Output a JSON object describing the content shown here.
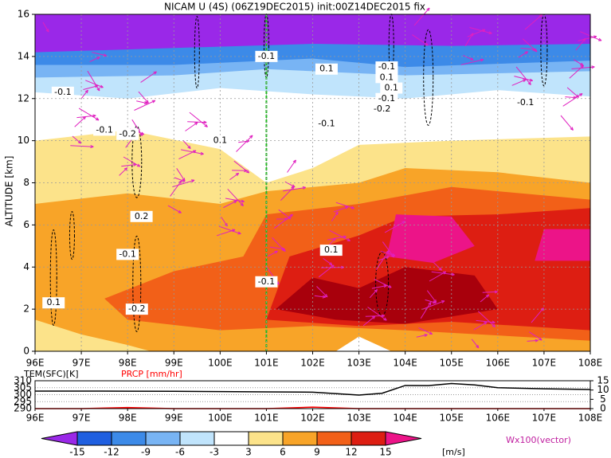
{
  "chart_data": [
    {
      "type": "contour",
      "title": "NICAM U (4S) (06Z19DEC2015) init:00Z14DEC2015 fix",
      "y_label": "ALTITUDE [km]",
      "xlim": [
        96,
        108
      ],
      "xticks": [
        {
          "value": 96,
          "label": "96E"
        },
        {
          "value": 97,
          "label": "97E"
        },
        {
          "value": 98,
          "label": "98E"
        },
        {
          "value": 99,
          "label": "99E"
        },
        {
          "value": 100,
          "label": "100E"
        },
        {
          "value": 101,
          "label": "101E"
        },
        {
          "value": 102,
          "label": "102E"
        },
        {
          "value": 103,
          "label": "103E"
        },
        {
          "value": 104,
          "label": "104E"
        },
        {
          "value": 105,
          "label": "105E"
        },
        {
          "value": 106,
          "label": "106E"
        },
        {
          "value": 107,
          "label": "107E"
        },
        {
          "value": 108,
          "label": "108E"
        }
      ],
      "ylim": [
        0,
        16
      ],
      "yticks": [
        0,
        2,
        4,
        6,
        8,
        10,
        12,
        14,
        16
      ],
      "grid": true,
      "annotations": [
        "-0.1",
        "0.1",
        "-0.1",
        "-0.1",
        "-0.2",
        "0.1",
        "-0.1",
        "0.1",
        "-0.1",
        "0.1",
        "-0.1",
        "-0.2",
        "0.2",
        "-0.1",
        "-0.1",
        "0.1",
        "0.1",
        "-0.2",
        "-0.1"
      ]
    },
    {
      "type": "line",
      "x": [
        96,
        97,
        98,
        99,
        100,
        101,
        102,
        103,
        103.5,
        104,
        104.5,
        105,
        105.5,
        106,
        107,
        108
      ],
      "xlim": [
        96,
        108
      ],
      "xticks": [
        {
          "value": 96,
          "label": "96E"
        },
        {
          "value": 97,
          "label": "97E"
        },
        {
          "value": 98,
          "label": "98E"
        },
        {
          "value": 99,
          "label": "99E"
        },
        {
          "value": 100,
          "label": "100E"
        },
        {
          "value": 101,
          "label": "101E"
        },
        {
          "value": 102,
          "label": "102E"
        },
        {
          "value": 103,
          "label": "103E"
        },
        {
          "value": 104,
          "label": "104E"
        },
        {
          "value": 105,
          "label": "105E"
        },
        {
          "value": 106,
          "label": "106E"
        },
        {
          "value": 107,
          "label": "107E"
        },
        {
          "value": 108,
          "label": "108E"
        }
      ],
      "ylim": [
        290,
        310
      ],
      "yticks": [
        290,
        295,
        300,
        305,
        310
      ],
      "y2lim": [
        0,
        15
      ],
      "y2ticks": [
        0,
        5,
        10,
        15
      ],
      "series": [
        {
          "name": "TEM(SFC)[K]",
          "color": "#000000",
          "values": [
            302.6,
            302.6,
            302.5,
            302.4,
            302.2,
            302,
            301.8,
            299.7,
            301,
            306.6,
            306.5,
            308,
            307,
            305,
            304.2,
            303.7
          ]
        },
        {
          "name": "PRCP [mm/hr]",
          "color": "#ff0000",
          "axis": "y2",
          "values": [
            0,
            0,
            0.6,
            0,
            0,
            0,
            0.8,
            0,
            0,
            0,
            0,
            0,
            0,
            0,
            0,
            0
          ]
        }
      ]
    },
    {
      "type": "colorbar",
      "levels": [
        -15,
        -12,
        -9,
        -6,
        -3,
        3,
        6,
        9,
        12,
        15
      ],
      "colors": [
        "#9a28e8",
        "#1f5fe0",
        "#3c8ae8",
        "#78b4f4",
        "#c0e4fc",
        "#ffffff",
        "#fce38a",
        "#f8a428",
        "#f26018",
        "#dd1e12",
        "#a8000c",
        "#ec1488"
      ],
      "unit": "[m/s]",
      "vector_label": "Wx100(vector)"
    }
  ]
}
